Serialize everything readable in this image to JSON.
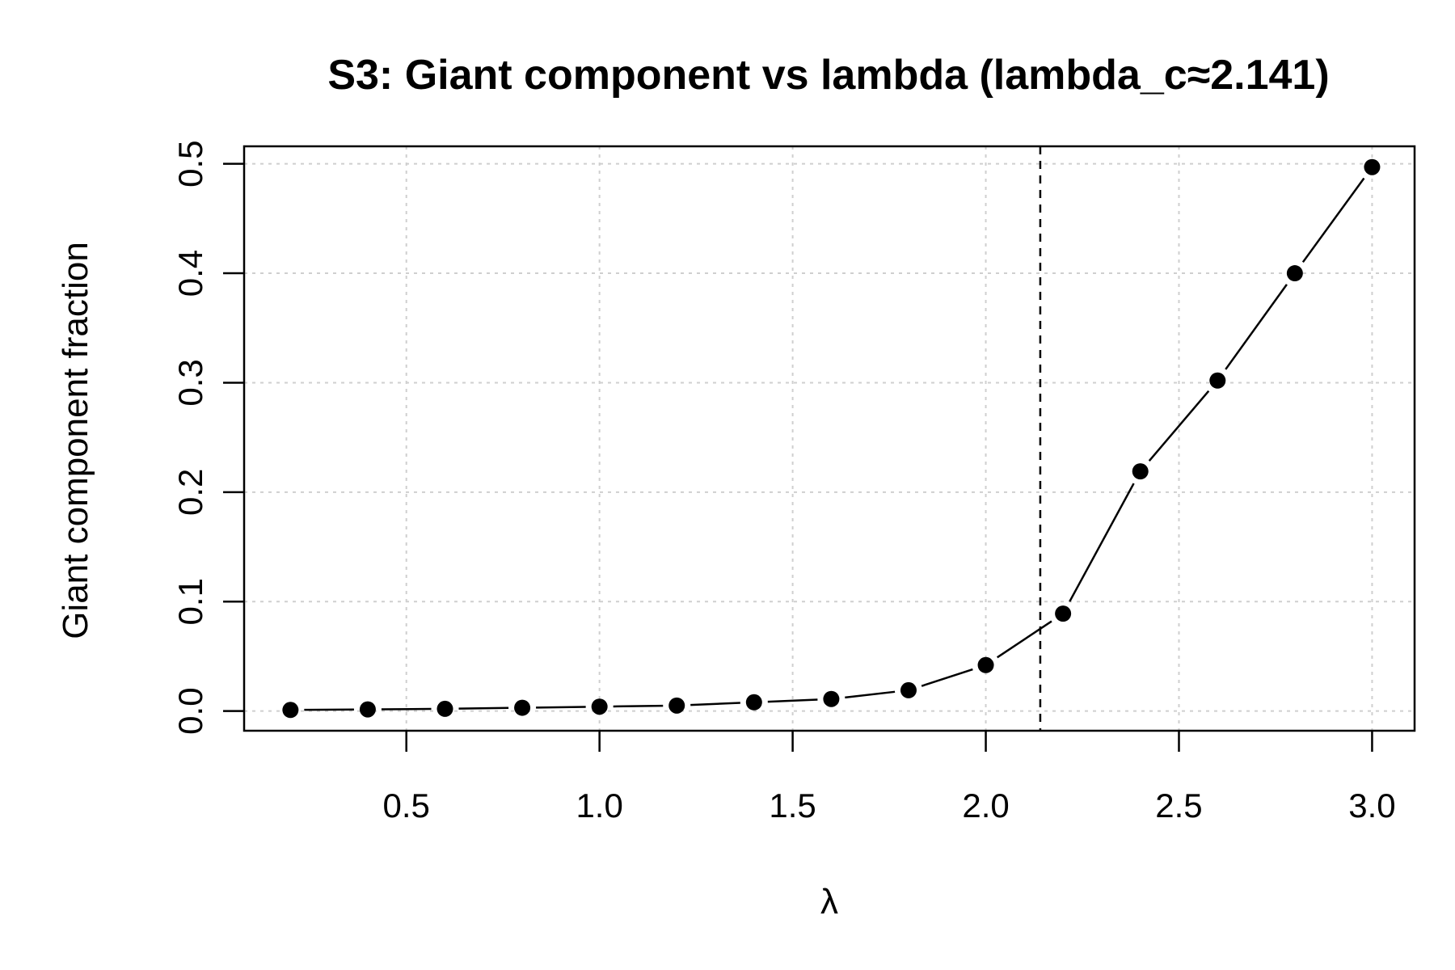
{
  "chart_data": {
    "type": "line",
    "title": "S3: Giant component vs lambda (lambda_c≈2.141)",
    "xlabel": "λ",
    "ylabel": "Giant component fraction",
    "xlim": [
      0.08,
      3.11
    ],
    "ylim": [
      -0.018,
      0.516
    ],
    "xticks": [
      0.5,
      1.0,
      1.5,
      2.0,
      2.5,
      3.0
    ],
    "xtick_labels": [
      "0.5",
      "1.0",
      "1.5",
      "2.0",
      "2.5",
      "3.0"
    ],
    "yticks": [
      0.0,
      0.1,
      0.2,
      0.3,
      0.4,
      0.5
    ],
    "ytick_labels": [
      "0.0",
      "0.1",
      "0.2",
      "0.3",
      "0.4",
      "0.5"
    ],
    "grid": true,
    "reference_line": {
      "orientation": "vertical",
      "x": 2.141,
      "style": "dashed"
    },
    "series": [
      {
        "style": "points-and-lines",
        "x": [
          0.2,
          0.4,
          0.6,
          0.8,
          1.0,
          1.2,
          1.4,
          1.6,
          1.8,
          2.0,
          2.2,
          2.4,
          2.6,
          2.8,
          3.0
        ],
        "y": [
          0.001,
          0.0015,
          0.002,
          0.003,
          0.004,
          0.005,
          0.008,
          0.011,
          0.019,
          0.042,
          0.089,
          0.219,
          0.302,
          0.4,
          0.497
        ]
      }
    ]
  }
}
